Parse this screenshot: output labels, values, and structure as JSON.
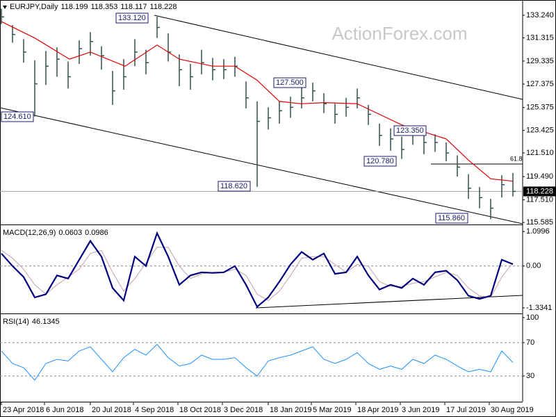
{
  "watermark": "ActionForex.com",
  "annotations": [
    "133.120",
    "124.610",
    "118.620",
    "127.500",
    "123.350",
    "120.780",
    "115.860",
    "61.8"
  ],
  "chart_data": [
    {
      "type": "ohlc",
      "title": "EURJPY,Daily",
      "readout": [
        118.199,
        118.353,
        118.117,
        118.228
      ],
      "color": "#2f4f4f",
      "grid": false,
      "xlim": [
        -1,
        375
      ],
      "ylim": [
        115.47,
        134.54
      ],
      "yticks": [
        {
          "value": 133.24,
          "label": "133.240"
        },
        131.315,
        129.335,
        127.375,
        125.375,
        123.425,
        {
          "value": 121.51,
          "label": "121.510"
        },
        {
          "value": 119.49,
          "label": "119.490"
        },
        {
          "value": 117.51,
          "label": "117.510"
        },
        115.585
      ],
      "x": [
        0,
        8,
        16,
        24,
        32,
        40,
        48,
        56,
        64,
        72,
        80,
        88,
        96,
        104,
        112,
        120,
        128,
        136,
        144,
        152,
        160,
        168,
        176,
        184,
        192,
        200,
        208,
        216,
        224,
        232,
        240,
        248,
        256,
        264,
        272,
        280,
        288,
        296,
        304,
        312,
        320,
        328,
        336,
        344,
        352,
        360,
        368
      ],
      "high": [
        133.8,
        132.4,
        131.2,
        129.4,
        130.2,
        130.5,
        129.3,
        131.1,
        131.8,
        130.6,
        128.5,
        129.5,
        131.2,
        130.3,
        133.12,
        131.7,
        129.9,
        129.1,
        130.3,
        129.6,
        129.5,
        129.7,
        127.6,
        125.9,
        125.4,
        125.9,
        126.3,
        127.1,
        127.5,
        126.6,
        125.7,
        126.2,
        127.0,
        125.6,
        124.0,
        123.6,
        122.9,
        123.8,
        123.35,
        123.1,
        122.4,
        121.3,
        119.7,
        118.6,
        117.6,
        119.6,
        119.8
      ],
      "low": [
        132.5,
        130.9,
        129.2,
        124.61,
        127.3,
        128.0,
        127.0,
        129.1,
        129.8,
        128.6,
        125.6,
        126.9,
        128.9,
        128.2,
        131.3,
        129.3,
        127.2,
        126.9,
        128.2,
        127.7,
        127.8,
        128.0,
        125.3,
        118.62,
        123.5,
        124.0,
        124.5,
        125.3,
        125.9,
        124.9,
        124.0,
        124.6,
        125.3,
        123.9,
        122.1,
        121.7,
        121.0,
        122.2,
        121.4,
        121.6,
        120.8,
        119.5,
        117.6,
        116.8,
        115.86,
        117.7,
        117.8
      ],
      "close": [
        133.1,
        131.6,
        130.1,
        127.4,
        128.9,
        129.5,
        128.0,
        130.4,
        131.0,
        129.8,
        126.8,
        128.0,
        130.1,
        129.2,
        132.2,
        130.1,
        128.6,
        128.0,
        129.2,
        128.6,
        128.6,
        128.9,
        126.2,
        124.2,
        124.5,
        125.1,
        125.4,
        126.2,
        126.8,
        125.7,
        124.8,
        125.4,
        126.2,
        124.8,
        123.0,
        122.7,
        121.8,
        123.3,
        122.4,
        122.4,
        121.5,
        120.3,
        118.5,
        117.7,
        116.8,
        118.8,
        118.228
      ],
      "ma": {
        "color": "#e00000",
        "x": [
          0,
          24,
          49,
          64,
          89,
          112,
          128,
          152,
          168,
          184,
          200,
          216,
          232,
          256,
          272,
          288,
          304,
          320,
          336,
          352,
          368
        ],
        "values": [
          132.7,
          131.3,
          129.5,
          130.1,
          128.9,
          130.7,
          129.5,
          128.9,
          128.9,
          127.7,
          125.9,
          125.7,
          125.8,
          125.7,
          124.8,
          123.9,
          123.3,
          122.7,
          120.9,
          119.3,
          119.1
        ]
      }
    },
    {
      "type": "line",
      "title": "MACD(12,26,9)",
      "readout": [
        0.0603,
        0.0986
      ],
      "grid": true,
      "xlim": [
        -1,
        375
      ],
      "ylim": [
        -1.49,
        1.28
      ],
      "yticks": [
        1.0996,
        {
          "value": 0,
          "label": "0.00"
        },
        -1.3341
      ],
      "x": [
        0,
        8,
        16,
        24,
        32,
        40,
        48,
        56,
        64,
        72,
        80,
        88,
        96,
        104,
        112,
        120,
        128,
        136,
        144,
        152,
        160,
        168,
        176,
        184,
        192,
        200,
        208,
        216,
        224,
        232,
        240,
        248,
        256,
        264,
        272,
        280,
        288,
        296,
        304,
        312,
        320,
        328,
        336,
        344,
        352,
        360,
        368
      ],
      "series": [
        {
          "color": "#00007f",
          "width": 2.2,
          "values": [
            0.4,
            0.0,
            -0.35,
            -1.0,
            -0.9,
            -0.3,
            -0.4,
            0.2,
            0.8,
            0.3,
            -0.7,
            -1.1,
            0.3,
            0.0,
            1.05,
            0.3,
            -0.6,
            -0.3,
            -0.2,
            -0.22,
            -0.2,
            0.0,
            -0.6,
            -1.3,
            -1.0,
            -0.5,
            0.05,
            0.45,
            0.2,
            0.4,
            -0.25,
            -0.2,
            0.3,
            -0.3,
            -0.75,
            -0.6,
            -0.7,
            -0.4,
            -0.6,
            -0.2,
            -0.15,
            -0.45,
            -0.95,
            -1.05,
            -0.95,
            0.2,
            0.06
          ]
        },
        {
          "color": "#c8a0a0",
          "width": 1,
          "values": [
            0.5,
            0.25,
            -0.1,
            -0.6,
            -0.9,
            -0.6,
            -0.35,
            -0.1,
            0.4,
            0.5,
            -0.2,
            -0.8,
            -0.4,
            0.1,
            0.6,
            0.6,
            0.0,
            -0.4,
            -0.25,
            -0.2,
            -0.2,
            -0.1,
            -0.3,
            -0.9,
            -1.1,
            -0.8,
            -0.3,
            0.25,
            0.3,
            0.3,
            0.05,
            -0.2,
            0.05,
            0.0,
            -0.5,
            -0.65,
            -0.65,
            -0.55,
            -0.5,
            -0.35,
            -0.2,
            -0.3,
            -0.7,
            -0.95,
            -1.0,
            -0.35,
            0.1
          ]
        }
      ]
    },
    {
      "type": "line",
      "title": "RSI(14)",
      "readout": [
        46.1345
      ],
      "grid": true,
      "xlim": [
        -1,
        375
      ],
      "ylim": [
        -0.8,
        103.3
      ],
      "yticks": [
        100,
        70,
        30
      ],
      "xticks": [
        {
          "value": 0,
          "label": "23 Apr 2018"
        },
        {
          "value": 31,
          "label": "6 Jun 2018"
        },
        {
          "value": 64,
          "label": "20 Jul 2018"
        },
        {
          "value": 95,
          "label": "4 Sep 2018"
        },
        {
          "value": 127,
          "label": "18 Oct 2018"
        },
        {
          "value": 159,
          "label": "3 Dec 2018"
        },
        {
          "value": 192,
          "label": "18 Jan 2019"
        },
        {
          "value": 223,
          "label": "5 Mar 2019"
        },
        {
          "value": 255,
          "label": "18 Apr 2019"
        },
        {
          "value": 287,
          "label": "3 Jun 2019"
        },
        {
          "value": 319,
          "label": "17 Jul 2019"
        },
        {
          "value": 351,
          "label": "30 Aug 2019"
        }
      ],
      "x": [
        0,
        8,
        16,
        24,
        32,
        40,
        48,
        56,
        64,
        72,
        80,
        88,
        96,
        104,
        112,
        120,
        128,
        136,
        144,
        152,
        160,
        168,
        176,
        184,
        192,
        200,
        208,
        216,
        224,
        232,
        240,
        248,
        256,
        264,
        272,
        280,
        288,
        296,
        304,
        312,
        320,
        328,
        336,
        344,
        352,
        360,
        368
      ],
      "series": [
        {
          "color": "#1e90ff",
          "width": 1,
          "values": [
            60,
            45,
            40,
            25,
            45,
            50,
            48,
            60,
            65,
            50,
            35,
            52,
            62,
            55,
            68,
            52,
            42,
            45,
            55,
            50,
            50,
            52,
            40,
            30,
            48,
            52,
            55,
            60,
            65,
            50,
            45,
            50,
            58,
            45,
            38,
            42,
            38,
            50,
            45,
            55,
            50,
            42,
            35,
            38,
            35,
            60,
            46.1345
          ]
        }
      ]
    }
  ]
}
